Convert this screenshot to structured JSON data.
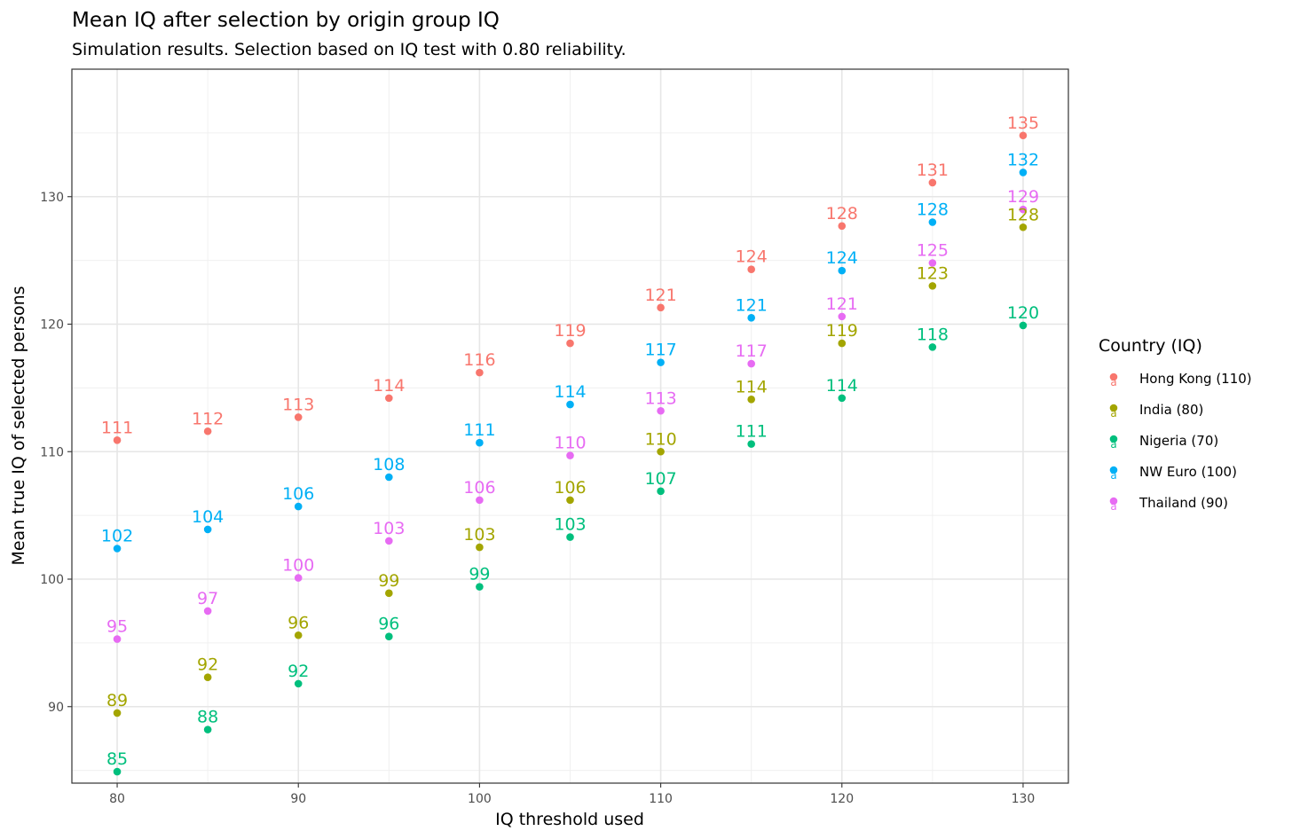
{
  "chart_data": {
    "type": "scatter",
    "title": "Mean IQ after selection by origin group IQ",
    "subtitle": "Simulation results. Selection based on IQ test with 0.80 reliability.",
    "xlabel": "IQ threshold used",
    "ylabel": "Mean true IQ of selected persons",
    "xlim": [
      77.5,
      132.5
    ],
    "ylim": [
      84,
      140
    ],
    "xticks": [
      80,
      90,
      100,
      110,
      120,
      130
    ],
    "yticks": [
      90,
      100,
      110,
      120,
      130
    ],
    "grid": true,
    "legend": {
      "title": "Country (IQ)",
      "position": "right"
    },
    "x": [
      80,
      85,
      90,
      95,
      100,
      105,
      110,
      115,
      120,
      125,
      130
    ],
    "series": [
      {
        "name": "Hong Kong (110)",
        "color": "#F8766D",
        "values": [
          110.9,
          111.6,
          112.7,
          114.2,
          116.2,
          118.5,
          121.3,
          124.3,
          127.7,
          131.1,
          134.8
        ],
        "labels": [
          "111",
          "112",
          "113",
          "114",
          "116",
          "119",
          "121",
          "124",
          "128",
          "131",
          "135"
        ]
      },
      {
        "name": "India (80)",
        "color": "#A3A500",
        "values": [
          89.5,
          92.3,
          95.6,
          98.9,
          102.5,
          106.2,
          110.0,
          114.1,
          118.5,
          123.0,
          127.6
        ],
        "labels": [
          "89",
          "92",
          "96",
          "99",
          "103",
          "106",
          "110",
          "114",
          "119",
          "123",
          "128"
        ]
      },
      {
        "name": "Nigeria (70)",
        "color": "#00BF7D",
        "values": [
          84.9,
          88.2,
          91.8,
          95.5,
          99.4,
          103.3,
          106.9,
          110.6,
          114.2,
          118.2,
          119.9
        ],
        "labels": [
          "85",
          "88",
          "92",
          "96",
          "99",
          "103",
          "107",
          "111",
          "114",
          "118",
          "120"
        ]
      },
      {
        "name": "NW Euro (100)",
        "color": "#00B0F6",
        "values": [
          102.4,
          103.9,
          105.7,
          108.0,
          110.7,
          113.7,
          117.0,
          120.5,
          124.2,
          128.0,
          131.9
        ],
        "labels": [
          "102",
          "104",
          "106",
          "108",
          "111",
          "114",
          "117",
          "121",
          "124",
          "128",
          "132"
        ]
      },
      {
        "name": "Thailand (90)",
        "color": "#E76BF3",
        "values": [
          95.3,
          97.5,
          100.1,
          103.0,
          106.2,
          109.7,
          113.2,
          116.9,
          120.6,
          124.8,
          129.0
        ],
        "labels": [
          "95",
          "97",
          "100",
          "103",
          "106",
          "110",
          "113",
          "117",
          "121",
          "125",
          "129"
        ]
      }
    ]
  }
}
